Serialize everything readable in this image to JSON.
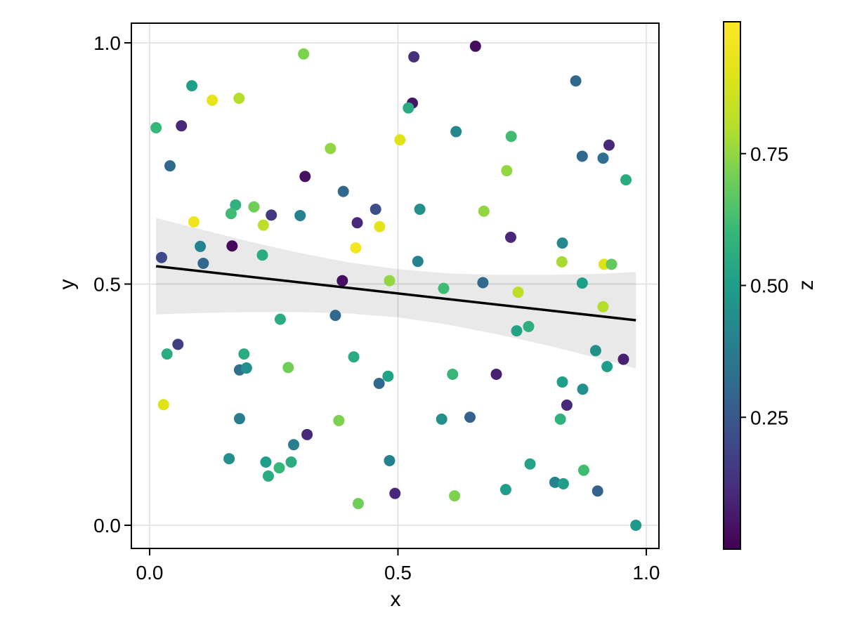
{
  "figure": {
    "background": "#ffffff"
  },
  "chart_data": {
    "type": "scatter",
    "title": "",
    "xlabel": "x",
    "ylabel": "y",
    "xlim": [
      -0.037,
      1.026
    ],
    "ylim": [
      -0.048,
      1.041
    ],
    "grid": true,
    "x_ticks": [
      {
        "value": 0.0,
        "label": "0.0"
      },
      {
        "value": 0.5,
        "label": "0.5"
      },
      {
        "value": 1.0,
        "label": "1.0"
      }
    ],
    "y_ticks": [
      {
        "value": 0.0,
        "label": "0.0"
      },
      {
        "value": 0.5,
        "label": "0.5"
      },
      {
        "value": 1.0,
        "label": "1.0"
      }
    ],
    "points": [
      [
        0.31,
        0.977,
        0.72
      ],
      [
        0.085,
        0.911,
        0.5
      ],
      [
        0.126,
        0.881,
        0.93
      ],
      [
        0.18,
        0.885,
        0.8
      ],
      [
        0.013,
        0.824,
        0.6
      ],
      [
        0.064,
        0.828,
        0.1
      ],
      [
        0.041,
        0.745,
        0.3
      ],
      [
        0.313,
        0.723,
        0.04
      ],
      [
        0.656,
        0.993,
        0.03
      ],
      [
        0.532,
        0.971,
        0.12
      ],
      [
        0.529,
        0.875,
        0.05
      ],
      [
        0.521,
        0.865,
        0.55
      ],
      [
        0.617,
        0.816,
        0.42
      ],
      [
        0.504,
        0.799,
        0.9
      ],
      [
        0.364,
        0.781,
        0.75
      ],
      [
        0.39,
        0.692,
        0.3
      ],
      [
        0.858,
        0.921,
        0.3
      ],
      [
        0.728,
        0.806,
        0.62
      ],
      [
        0.925,
        0.788,
        0.1
      ],
      [
        0.871,
        0.765,
        0.3
      ],
      [
        0.913,
        0.761,
        0.33
      ],
      [
        0.719,
        0.735,
        0.75
      ],
      [
        0.959,
        0.716,
        0.55
      ],
      [
        0.173,
        0.664,
        0.58
      ],
      [
        0.21,
        0.66,
        0.7
      ],
      [
        0.164,
        0.646,
        0.62
      ],
      [
        0.245,
        0.643,
        0.15
      ],
      [
        0.303,
        0.642,
        0.4
      ],
      [
        0.089,
        0.629,
        0.95
      ],
      [
        0.229,
        0.622,
        0.82
      ],
      [
        0.102,
        0.578,
        0.4
      ],
      [
        0.166,
        0.579,
        0.02
      ],
      [
        0.227,
        0.56,
        0.55
      ],
      [
        0.024,
        0.555,
        0.2
      ],
      [
        0.108,
        0.543,
        0.3
      ],
      [
        0.263,
        0.427,
        0.55
      ],
      [
        0.057,
        0.375,
        0.17
      ],
      [
        0.035,
        0.355,
        0.55
      ],
      [
        0.19,
        0.355,
        0.55
      ],
      [
        0.181,
        0.322,
        0.33
      ],
      [
        0.195,
        0.326,
        0.45
      ],
      [
        0.279,
        0.327,
        0.7
      ],
      [
        0.455,
        0.655,
        0.22
      ],
      [
        0.544,
        0.655,
        0.45
      ],
      [
        0.673,
        0.651,
        0.75
      ],
      [
        0.418,
        0.627,
        0.1
      ],
      [
        0.463,
        0.619,
        0.92
      ],
      [
        0.415,
        0.575,
        0.97
      ],
      [
        0.54,
        0.547,
        0.4
      ],
      [
        0.388,
        0.507,
        0.03
      ],
      [
        0.483,
        0.507,
        0.75
      ],
      [
        0.592,
        0.491,
        0.62
      ],
      [
        0.671,
        0.503,
        0.3
      ],
      [
        0.374,
        0.435,
        0.3
      ],
      [
        0.411,
        0.349,
        0.55
      ],
      [
        0.727,
        0.597,
        0.1
      ],
      [
        0.831,
        0.585,
        0.42
      ],
      [
        0.83,
        0.546,
        0.78
      ],
      [
        0.915,
        0.541,
        0.9
      ],
      [
        0.93,
        0.541,
        0.68
      ],
      [
        0.871,
        0.502,
        0.5
      ],
      [
        0.742,
        0.483,
        0.82
      ],
      [
        0.913,
        0.453,
        0.8
      ],
      [
        0.739,
        0.403,
        0.52
      ],
      [
        0.763,
        0.412,
        0.57
      ],
      [
        0.898,
        0.362,
        0.45
      ],
      [
        0.954,
        0.344,
        0.08
      ],
      [
        0.921,
        0.329,
        0.5
      ],
      [
        0.028,
        0.25,
        0.9
      ],
      [
        0.181,
        0.221,
        0.38
      ],
      [
        0.29,
        0.167,
        0.38
      ],
      [
        0.16,
        0.138,
        0.45
      ],
      [
        0.234,
        0.131,
        0.5
      ],
      [
        0.261,
        0.119,
        0.6
      ],
      [
        0.285,
        0.131,
        0.55
      ],
      [
        0.239,
        0.102,
        0.55
      ],
      [
        0.48,
        0.309,
        0.52
      ],
      [
        0.462,
        0.294,
        0.3
      ],
      [
        0.61,
        0.313,
        0.6
      ],
      [
        0.381,
        0.217,
        0.72
      ],
      [
        0.317,
        0.188,
        0.1
      ],
      [
        0.588,
        0.22,
        0.45
      ],
      [
        0.645,
        0.224,
        0.28
      ],
      [
        0.483,
        0.134,
        0.4
      ],
      [
        0.494,
        0.066,
        0.1
      ],
      [
        0.42,
        0.045,
        0.7
      ],
      [
        0.614,
        0.061,
        0.72
      ],
      [
        0.698,
        0.313,
        0.08
      ],
      [
        0.831,
        0.297,
        0.5
      ],
      [
        0.872,
        0.282,
        0.45
      ],
      [
        0.84,
        0.249,
        0.1
      ],
      [
        0.827,
        0.22,
        0.58
      ],
      [
        0.766,
        0.127,
        0.52
      ],
      [
        0.874,
        0.114,
        0.62
      ],
      [
        0.816,
        0.089,
        0.4
      ],
      [
        0.833,
        0.086,
        0.5
      ],
      [
        0.717,
        0.074,
        0.5
      ],
      [
        0.902,
        0.071,
        0.28
      ],
      [
        0.979,
        0.0,
        0.48
      ]
    ],
    "regression": {
      "x": [
        0.013,
        0.979
      ],
      "y": [
        0.537,
        0.425
      ],
      "color": "#000000"
    },
    "ci_band": {
      "fill": "rgba(0,0,0,0.085)",
      "samples": [
        [
          0.013,
          0.637,
          0.437
        ],
        [
          0.1,
          0.614,
          0.44
        ],
        [
          0.2,
          0.588,
          0.442
        ],
        [
          0.3,
          0.565,
          0.442
        ],
        [
          0.4,
          0.545,
          0.439
        ],
        [
          0.5,
          0.531,
          0.431
        ],
        [
          0.6,
          0.522,
          0.416
        ],
        [
          0.7,
          0.519,
          0.396
        ],
        [
          0.8,
          0.519,
          0.373
        ],
        [
          0.9,
          0.521,
          0.347
        ],
        [
          0.979,
          0.525,
          0.325
        ]
      ]
    },
    "colorbar": {
      "label": "z",
      "limits": [
        0,
        1
      ],
      "ticks": [
        {
          "value": 0.25,
          "label": "0.25"
        },
        {
          "value": 0.5,
          "label": "0.50"
        },
        {
          "value": 0.75,
          "label": "0.75"
        }
      ],
      "colormap": "viridis",
      "stops": [
        [
          0.0,
          "#440154"
        ],
        [
          0.1,
          "#482878"
        ],
        [
          0.2,
          "#3e4989"
        ],
        [
          0.3,
          "#31688e"
        ],
        [
          0.4,
          "#26828e"
        ],
        [
          0.5,
          "#1f9e89"
        ],
        [
          0.6,
          "#35b779"
        ],
        [
          0.7,
          "#6ece58"
        ],
        [
          0.8,
          "#b5de2b"
        ],
        [
          0.9,
          "#dfe318"
        ],
        [
          1.0,
          "#fde725"
        ]
      ]
    }
  },
  "colors": {
    "frame": "#000000",
    "grid": "#dedede",
    "text": "#000000"
  }
}
